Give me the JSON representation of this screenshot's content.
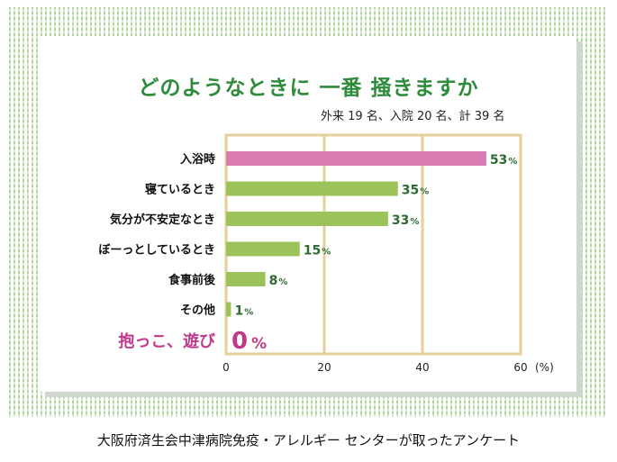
{
  "chart_data": {
    "type": "bar",
    "orientation": "horizontal",
    "title": "どのようなときに 一番 掻きますか",
    "subtitle": "外来 19 名、入院 20 名、計 39 名",
    "caption": "大阪府済生会中津病院免疫・アレルギー センターが取ったアンケート",
    "categories": [
      "入浴時",
      "寝ているとき",
      "気分が不安定なとき",
      "ぼーっとしているとき",
      "食事前後",
      "その他",
      "抱っこ、遊び"
    ],
    "values": [
      53,
      35,
      33,
      15,
      8,
      1,
      0
    ],
    "value_labels": [
      "53",
      "35",
      "33",
      "15",
      "8",
      "1",
      "0"
    ],
    "unit": "%",
    "x_ticks": [
      "0",
      "20",
      "40",
      "60"
    ],
    "x_unit_label": "(%)",
    "xlim": [
      0,
      60
    ],
    "grid": true,
    "colors": {
      "highlight_bar": "#d97bb0",
      "bar": "#9cc25a",
      "frame": "#e6cf9a",
      "value_text": "#2e6a33",
      "highlight_text": "#c0398a",
      "title": "#2e8b3a"
    },
    "highlight_index": 0,
    "emphasis_index": 6
  }
}
